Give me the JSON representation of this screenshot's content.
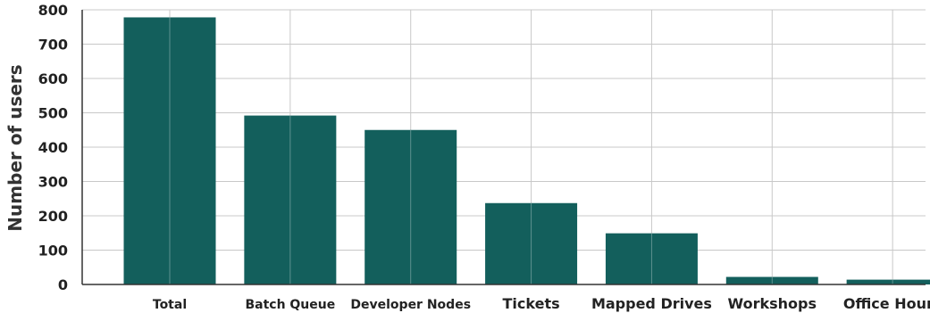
{
  "chart_data": {
    "type": "bar",
    "title": "",
    "xlabel": "",
    "ylabel": "Number of users",
    "categories": [
      "Total",
      "Batch Queue",
      "Developer Nodes",
      "Tickets",
      "Mapped Drives",
      "Workshops",
      "Office Hours"
    ],
    "values": [
      778,
      492,
      450,
      237,
      149,
      22,
      14
    ],
    "ylim": [
      0,
      800
    ],
    "yticks": [
      0,
      100,
      200,
      300,
      400,
      500,
      600,
      700,
      800
    ],
    "grid": true,
    "bar_color": "#135f5c",
    "grid_color": "#c8c8c8",
    "axis_color": "#333333"
  }
}
